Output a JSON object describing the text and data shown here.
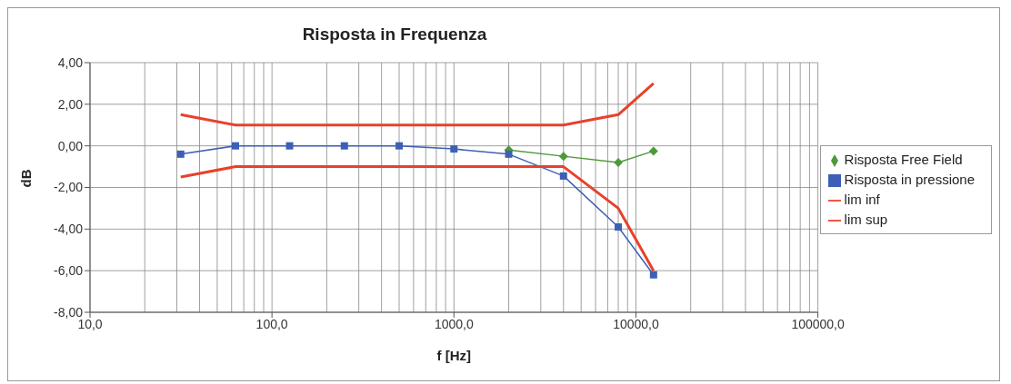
{
  "chart_data": {
    "type": "line",
    "title": "Risposta in Frequenza",
    "xlabel": "f [Hz]",
    "ylabel": "dB",
    "log": "x",
    "grid": true,
    "legend": "right",
    "xlim": [
      10,
      100000
    ],
    "xticks": [
      {
        "value": 10,
        "label": "10,0"
      },
      {
        "value": 100,
        "label": "100,0"
      },
      {
        "value": 1000,
        "label": "1000,0"
      },
      {
        "value": 10000,
        "label": "10000,0"
      },
      {
        "value": 100000,
        "label": "100000,0"
      }
    ],
    "ylim": [
      -8,
      4
    ],
    "yticks": [
      {
        "value": -8,
        "label": "-8,00"
      },
      {
        "value": -6,
        "label": "-6,00"
      },
      {
        "value": -4,
        "label": "-4,00"
      },
      {
        "value": -2,
        "label": "-2,00"
      },
      {
        "value": 0,
        "label": "0,00"
      },
      {
        "value": 2,
        "label": "2,00"
      },
      {
        "value": 4,
        "label": "4,00"
      }
    ],
    "series": [
      {
        "name": "Risposta Free Field",
        "color": "#4e9a3a",
        "marker": "diamond",
        "x": [
          2000,
          4000,
          8000,
          12500
        ],
        "values": [
          -0.2,
          -0.5,
          -0.8,
          -0.25
        ]
      },
      {
        "name": "Risposta in pressione",
        "color": "#3d5fb5",
        "marker": "square",
        "x": [
          31.5,
          63,
          125,
          250,
          500,
          1000,
          2000,
          4000,
          8000,
          12500
        ],
        "values": [
          -0.4,
          0,
          0,
          0,
          0,
          -0.15,
          -0.4,
          -1.45,
          -3.9,
          -6.2
        ]
      },
      {
        "name": "lim inf",
        "color": "#e8412c",
        "marker": "none",
        "x": [
          31.5,
          63,
          125,
          250,
          500,
          1000,
          2000,
          4000,
          8000,
          12500
        ],
        "values": [
          -1.5,
          -1,
          -1,
          -1,
          -1,
          -1,
          -1,
          -1,
          -3,
          -6
        ]
      },
      {
        "name": "lim sup",
        "color": "#e8412c",
        "marker": "none",
        "x": [
          31.5,
          63,
          125,
          250,
          500,
          1000,
          2000,
          4000,
          8000,
          12500
        ],
        "values": [
          1.5,
          1,
          1,
          1,
          1,
          1,
          1,
          1,
          1.5,
          3
        ]
      }
    ]
  }
}
